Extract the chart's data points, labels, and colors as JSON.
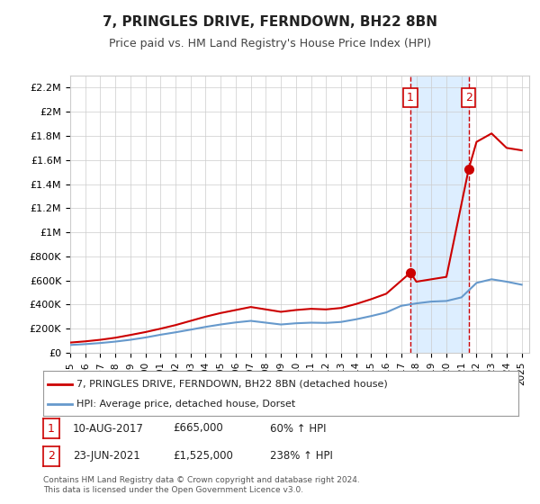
{
  "title": "7, PRINGLES DRIVE, FERNDOWN, BH22 8BN",
  "subtitle": "Price paid vs. HM Land Registry's House Price Index (HPI)",
  "ylabel": "",
  "ylim": [
    0,
    2300000
  ],
  "yticks": [
    0,
    200000,
    400000,
    600000,
    800000,
    1000000,
    1200000,
    1400000,
    1600000,
    1800000,
    2000000,
    2200000
  ],
  "ytick_labels": [
    "£0",
    "£200K",
    "£400K",
    "£600K",
    "£800K",
    "£1M",
    "£1.2M",
    "£1.4M",
    "£1.6M",
    "£1.8M",
    "£2M",
    "£2.2M"
  ],
  "xlim_start": 1995.0,
  "xlim_end": 2025.5,
  "xticks": [
    1995,
    1996,
    1997,
    1998,
    1999,
    2000,
    2001,
    2002,
    2003,
    2004,
    2005,
    2006,
    2007,
    2008,
    2009,
    2010,
    2011,
    2012,
    2013,
    2014,
    2015,
    2016,
    2017,
    2018,
    2019,
    2020,
    2021,
    2022,
    2023,
    2024,
    2025
  ],
  "transaction1_x": 2017.609,
  "transaction1_y": 665000,
  "transaction1_label": "1",
  "transaction2_x": 2021.479,
  "transaction2_y": 1525000,
  "transaction2_label": "2",
  "legend_line1": "7, PRINGLES DRIVE, FERNDOWN, BH22 8BN (detached house)",
  "legend_line2": "HPI: Average price, detached house, Dorset",
  "table_row1": [
    "1",
    "10-AUG-2017",
    "£665,000",
    "60% ↑ HPI"
  ],
  "table_row2": [
    "2",
    "23-JUN-2021",
    "£1,525,000",
    "238% ↑ HPI"
  ],
  "footer": "Contains HM Land Registry data © Crown copyright and database right 2024.\nThis data is licensed under the Open Government Licence v3.0.",
  "property_color": "#cc0000",
  "hpi_color": "#6699cc",
  "shade_color": "#ddeeff",
  "hpi_years": [
    1995,
    1996,
    1997,
    1998,
    1999,
    2000,
    2001,
    2002,
    2003,
    2004,
    2005,
    2006,
    2007,
    2008,
    2009,
    2010,
    2011,
    2012,
    2013,
    2014,
    2015,
    2016,
    2017,
    2018,
    2019,
    2020,
    2021,
    2022,
    2023,
    2024,
    2025
  ],
  "hpi_values": [
    65000,
    72000,
    81000,
    93000,
    108000,
    127000,
    150000,
    170000,
    192000,
    215000,
    235000,
    252000,
    265000,
    250000,
    235000,
    245000,
    250000,
    248000,
    256000,
    278000,
    305000,
    335000,
    390000,
    410000,
    425000,
    430000,
    460000,
    580000,
    610000,
    590000,
    565000
  ],
  "property_years": [
    1995,
    1996,
    1997,
    1998,
    1999,
    2000,
    2001,
    2002,
    2003,
    2004,
    2005,
    2006,
    2007,
    2008,
    2009,
    2010,
    2011,
    2012,
    2013,
    2014,
    2015,
    2016,
    2017.609,
    2018,
    2019,
    2020,
    2021.479,
    2022,
    2023,
    2024,
    2025
  ],
  "property_values": [
    85000,
    95000,
    108000,
    125000,
    148000,
    172000,
    200000,
    230000,
    265000,
    300000,
    330000,
    355000,
    380000,
    360000,
    340000,
    355000,
    365000,
    360000,
    372000,
    405000,
    445000,
    490000,
    665000,
    590000,
    610000,
    630000,
    1525000,
    1750000,
    1820000,
    1700000,
    1680000
  ],
  "bg_color": "#ffffff",
  "grid_color": "#cccccc"
}
